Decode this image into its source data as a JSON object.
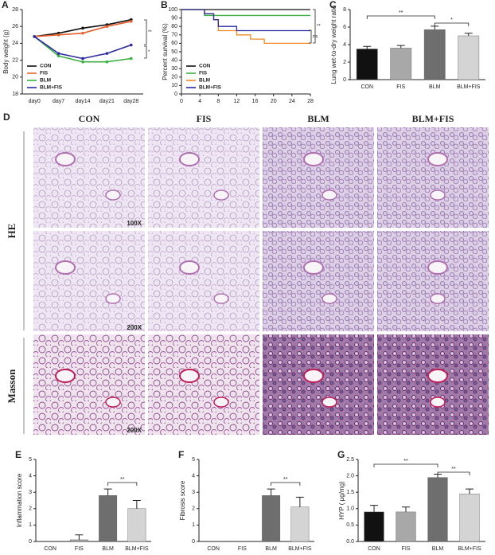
{
  "chart_data": [
    {
      "type": "line",
      "panel": "A",
      "y_label": "Body weight (g)",
      "categories": [
        "day0",
        "day7",
        "day14",
        "day21",
        "day28"
      ],
      "ylim": [
        18,
        28
      ],
      "yticks": [
        18,
        20,
        22,
        24,
        26,
        28
      ],
      "legend": "lower left",
      "series": [
        {
          "name": "CON",
          "color": "#111111",
          "values": [
            24.8,
            25.2,
            25.8,
            26.2,
            26.8
          ]
        },
        {
          "name": "FIS",
          "color": "#e8602c",
          "values": [
            24.8,
            25.0,
            25.2,
            26.0,
            26.6
          ]
        },
        {
          "name": "BLM",
          "color": "#3cb043",
          "values": [
            24.8,
            22.5,
            21.8,
            21.8,
            22.2
          ]
        },
        {
          "name": "BLM+FIS",
          "color": "#2a2aa0",
          "values": [
            24.8,
            22.8,
            22.2,
            22.8,
            23.8
          ]
        }
      ],
      "annotations": [
        "**",
        "*"
      ]
    },
    {
      "type": "step",
      "panel": "B",
      "y_label": "Percent survival (%)",
      "xlim": [
        0,
        28
      ],
      "xticks": [
        0,
        4,
        8,
        12,
        16,
        20,
        24,
        28
      ],
      "ylim": [
        0,
        100
      ],
      "yticks": [
        0,
        10,
        20,
        30,
        40,
        50,
        60,
        70,
        80,
        90,
        100
      ],
      "legend": "lower left",
      "series": [
        {
          "name": "CON",
          "color": "#111111",
          "x": [
            0,
            28
          ],
          "values": [
            100,
            100
          ]
        },
        {
          "name": "FIS",
          "color": "#3cb043",
          "x": [
            0,
            5,
            28
          ],
          "values": [
            100,
            93,
            93
          ]
        },
        {
          "name": "BLM",
          "color": "#f08a24",
          "x": [
            0,
            5,
            7,
            8,
            12,
            15,
            18,
            28
          ],
          "values": [
            100,
            95,
            88,
            75,
            70,
            65,
            60,
            60
          ]
        },
        {
          "name": "BLM+FIS",
          "color": "#2a2aa0",
          "x": [
            0,
            5,
            7,
            8,
            12,
            28
          ],
          "values": [
            100,
            95,
            88,
            80,
            75,
            75
          ]
        }
      ],
      "annotations": [
        "**",
        "ns"
      ]
    },
    {
      "type": "bar",
      "panel": "C",
      "y_label": "Lung wet-to-dry weight ratio",
      "categories": [
        "CON",
        "FIS",
        "BLM",
        "BLM+FIS"
      ],
      "values": [
        3.5,
        3.6,
        5.7,
        5.0
      ],
      "errors": [
        0.3,
        0.3,
        0.4,
        0.3
      ],
      "colors": [
        "#111111",
        "#a8a8a8",
        "#6e6e6e",
        "#d4d4d4"
      ],
      "ylim": [
        0,
        8
      ],
      "yticks": [
        0,
        2,
        4,
        6,
        8
      ],
      "annotations": [
        "**",
        "*"
      ]
    },
    {
      "type": "bar",
      "panel": "E",
      "y_label": "Inflammation score",
      "categories": [
        "CON",
        "FIS",
        "BLM",
        "BLM+FIS"
      ],
      "values": [
        0,
        0.1,
        2.8,
        2.0
      ],
      "errors": [
        0,
        0.3,
        0.4,
        0.5
      ],
      "colors": [
        "#111111",
        "#a8a8a8",
        "#6e6e6e",
        "#d4d4d4"
      ],
      "ylim": [
        0,
        5
      ],
      "yticks": [
        0,
        1,
        2,
        3,
        4,
        5
      ],
      "annotations": [
        "**"
      ]
    },
    {
      "type": "bar",
      "panel": "F",
      "y_label": "Fibrosis score",
      "categories": [
        "CON",
        "FIS",
        "BLM",
        "BLM+FIS"
      ],
      "values": [
        0,
        0,
        2.8,
        2.1
      ],
      "errors": [
        0,
        0,
        0.4,
        0.6
      ],
      "colors": [
        "#111111",
        "#a8a8a8",
        "#6e6e6e",
        "#d4d4d4"
      ],
      "ylim": [
        0,
        5
      ],
      "yticks": [
        0,
        1,
        2,
        3,
        4,
        5
      ],
      "annotations": [
        "**"
      ]
    },
    {
      "type": "bar",
      "panel": "G",
      "y_label": "HYP ( μg/mg)",
      "categories": [
        "CON",
        "FIS",
        "BLM",
        "BLM+FIS"
      ],
      "values": [
        0.9,
        0.9,
        1.95,
        1.45
      ],
      "errors": [
        0.2,
        0.15,
        0.1,
        0.15
      ],
      "colors": [
        "#111111",
        "#a8a8a8",
        "#6e6e6e",
        "#d4d4d4"
      ],
      "ylim": [
        0,
        2.5
      ],
      "yticks": [
        {
          "value": 0,
          "label": "0.0"
        },
        0.5,
        {
          "value": 1,
          "label": "1.0"
        },
        1.5,
        {
          "value": 2,
          "label": "2.0"
        },
        2.5
      ],
      "annotations": [
        "**",
        "**"
      ]
    }
  ],
  "histology": {
    "panel": "D",
    "columns": [
      "CON",
      "FIS",
      "BLM",
      "BLM+FIS"
    ],
    "rows": [
      "HE",
      "Masson"
    ],
    "magnifications": [
      "100X",
      "200X",
      "200X"
    ]
  }
}
